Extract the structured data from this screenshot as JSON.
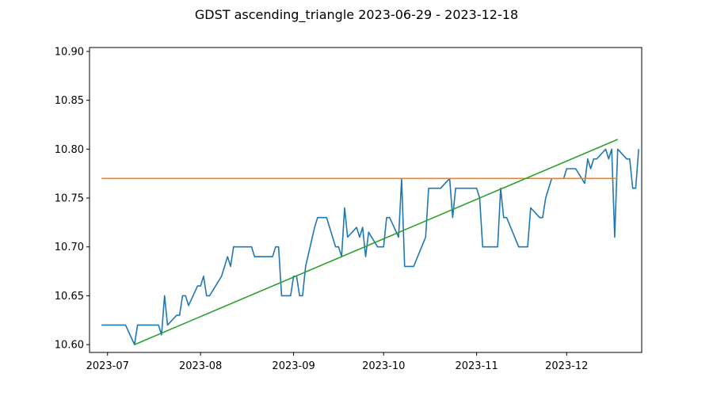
{
  "chart_data": {
    "type": "line",
    "title": "GDST ascending_triangle 2023-06-29 - 2023-12-18",
    "xlabel": "",
    "ylabel": "",
    "xlim": [
      "2023-06-25",
      "2023-12-26"
    ],
    "ylim": [
      10.592,
      10.904
    ],
    "x_ticks": [
      "2023-07",
      "2023-08",
      "2023-09",
      "2023-10",
      "2023-11",
      "2023-12"
    ],
    "y_ticks": [
      "10.60",
      "10.65",
      "10.70",
      "10.75",
      "10.80",
      "10.85",
      "10.90"
    ],
    "grid": false,
    "legend": "none",
    "series": [
      {
        "color": "#1f77b4",
        "points": [
          [
            "2023-06-29",
            10.62
          ],
          [
            "2023-07-07",
            10.62
          ],
          [
            "2023-07-10",
            10.6
          ],
          [
            "2023-07-11",
            10.62
          ],
          [
            "2023-07-18",
            10.62
          ],
          [
            "2023-07-19",
            10.61
          ],
          [
            "2023-07-20",
            10.65
          ],
          [
            "2023-07-21",
            10.62
          ],
          [
            "2023-07-24",
            10.63
          ],
          [
            "2023-07-25",
            10.63
          ],
          [
            "2023-07-26",
            10.65
          ],
          [
            "2023-07-27",
            10.65
          ],
          [
            "2023-07-28",
            10.64
          ],
          [
            "2023-07-31",
            10.66
          ],
          [
            "2023-08-01",
            10.66
          ],
          [
            "2023-08-02",
            10.67
          ],
          [
            "2023-08-03",
            10.65
          ],
          [
            "2023-08-04",
            10.65
          ],
          [
            "2023-08-08",
            10.67
          ],
          [
            "2023-08-10",
            10.69
          ],
          [
            "2023-08-11",
            10.68
          ],
          [
            "2023-08-12",
            10.7
          ],
          [
            "2023-08-18",
            10.7
          ],
          [
            "2023-08-19",
            10.69
          ],
          [
            "2023-08-25",
            10.69
          ],
          [
            "2023-08-26",
            10.7
          ],
          [
            "2023-08-27",
            10.7
          ],
          [
            "2023-08-28",
            10.65
          ],
          [
            "2023-08-31",
            10.65
          ],
          [
            "2023-09-01",
            10.67
          ],
          [
            "2023-09-02",
            10.67
          ],
          [
            "2023-09-03",
            10.65
          ],
          [
            "2023-09-04",
            10.65
          ],
          [
            "2023-09-05",
            10.68
          ],
          [
            "2023-09-08",
            10.72
          ],
          [
            "2023-09-09",
            10.73
          ],
          [
            "2023-09-12",
            10.73
          ],
          [
            "2023-09-15",
            10.7
          ],
          [
            "2023-09-16",
            10.7
          ],
          [
            "2023-09-17",
            10.69
          ],
          [
            "2023-09-18",
            10.74
          ],
          [
            "2023-09-19",
            10.71
          ],
          [
            "2023-09-22",
            10.72
          ],
          [
            "2023-09-23",
            10.71
          ],
          [
            "2023-09-24",
            10.72
          ],
          [
            "2023-09-25",
            10.69
          ],
          [
            "2023-09-26",
            10.715
          ],
          [
            "2023-09-29",
            10.7
          ],
          [
            "2023-10-01",
            10.7
          ],
          [
            "2023-10-02",
            10.73
          ],
          [
            "2023-10-03",
            10.73
          ],
          [
            "2023-10-06",
            10.71
          ],
          [
            "2023-10-07",
            10.77
          ],
          [
            "2023-10-08",
            10.68
          ],
          [
            "2023-10-11",
            10.68
          ],
          [
            "2023-10-15",
            10.71
          ],
          [
            "2023-10-16",
            10.76
          ],
          [
            "2023-10-20",
            10.76
          ],
          [
            "2023-10-23",
            10.77
          ],
          [
            "2023-10-24",
            10.73
          ],
          [
            "2023-10-25",
            10.76
          ],
          [
            "2023-11-01",
            10.76
          ],
          [
            "2023-11-02",
            10.75
          ],
          [
            "2023-11-03",
            10.7
          ],
          [
            "2023-11-08",
            10.7
          ],
          [
            "2023-11-09",
            10.76
          ],
          [
            "2023-11-10",
            10.73
          ],
          [
            "2023-11-11",
            10.73
          ],
          [
            "2023-11-15",
            10.7
          ],
          [
            "2023-11-18",
            10.7
          ],
          [
            "2023-11-19",
            10.74
          ],
          [
            "2023-11-22",
            10.73
          ],
          [
            "2023-11-23",
            10.73
          ],
          [
            "2023-11-24",
            10.75
          ],
          [
            "2023-11-26",
            10.77
          ],
          [
            "2023-11-30",
            10.77
          ],
          [
            "2023-12-01",
            10.78
          ],
          [
            "2023-12-04",
            10.78
          ],
          [
            "2023-12-07",
            10.765
          ],
          [
            "2023-12-08",
            10.79
          ],
          [
            "2023-12-09",
            10.78
          ],
          [
            "2023-12-10",
            10.79
          ],
          [
            "2023-12-11",
            10.79
          ],
          [
            "2023-12-14",
            10.8
          ],
          [
            "2023-12-15",
            10.79
          ],
          [
            "2023-12-16",
            10.8
          ],
          [
            "2023-12-17",
            10.71
          ],
          [
            "2023-12-18",
            10.8
          ],
          [
            "2023-12-21",
            10.79
          ],
          [
            "2023-12-22",
            10.79
          ],
          [
            "2023-12-23",
            10.76
          ],
          [
            "2023-12-24",
            10.76
          ],
          [
            "2023-12-25",
            10.8
          ]
        ]
      },
      {
        "color": "#ff7f0e",
        "points": [
          [
            "2023-06-29",
            10.77
          ],
          [
            "2023-12-18",
            10.77
          ]
        ]
      },
      {
        "color": "#2ca02c",
        "points": [
          [
            "2023-07-10",
            10.6
          ],
          [
            "2023-12-18",
            10.81
          ]
        ]
      }
    ]
  }
}
